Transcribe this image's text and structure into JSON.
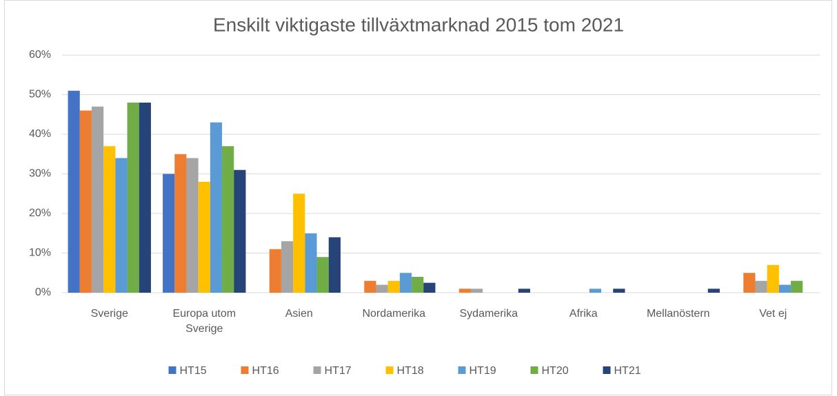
{
  "chart_data": {
    "type": "bar",
    "title": "Enskilt viktigaste tillväxtmarknad 2015 tom 2021",
    "categories": [
      "Sverige",
      "Europa utom Sverige",
      "Asien",
      "Nordamerika",
      "Sydamerika",
      "Afrika",
      "Mellanöstern",
      "Vet ej"
    ],
    "series": [
      {
        "name": "HT15",
        "color": "#4472c4",
        "values": [
          51,
          30,
          0,
          0,
          0,
          0,
          0,
          0
        ]
      },
      {
        "name": "HT16",
        "color": "#ed7d31",
        "values": [
          46,
          35,
          11,
          3,
          1,
          0,
          0,
          5
        ]
      },
      {
        "name": "HT17",
        "color": "#a5a5a5",
        "values": [
          47,
          34,
          13,
          2,
          1,
          0,
          0,
          3
        ]
      },
      {
        "name": "HT18",
        "color": "#ffc000",
        "values": [
          37,
          28,
          25,
          3,
          0,
          0,
          0,
          7
        ]
      },
      {
        "name": "HT19",
        "color": "#5b9bd5",
        "values": [
          34,
          43,
          15,
          5,
          0,
          1,
          0,
          2
        ]
      },
      {
        "name": "HT20",
        "color": "#70ad47",
        "values": [
          48,
          37,
          9,
          4,
          0,
          0,
          0,
          3
        ]
      },
      {
        "name": "HT21",
        "color": "#264478",
        "values": [
          48,
          31,
          14,
          2.5,
          1,
          1,
          1,
          0
        ]
      }
    ],
    "ylim": [
      0,
      60
    ],
    "yticks": [
      {
        "value": 0,
        "label": "0%"
      },
      {
        "value": 10,
        "label": "10%"
      },
      {
        "value": 20,
        "label": "20%"
      },
      {
        "value": 30,
        "label": "30%"
      },
      {
        "value": 40,
        "label": "40%"
      },
      {
        "value": 50,
        "label": "50%"
      },
      {
        "value": 60,
        "label": "60%"
      }
    ],
    "grid": true,
    "legend": "bottom"
  }
}
